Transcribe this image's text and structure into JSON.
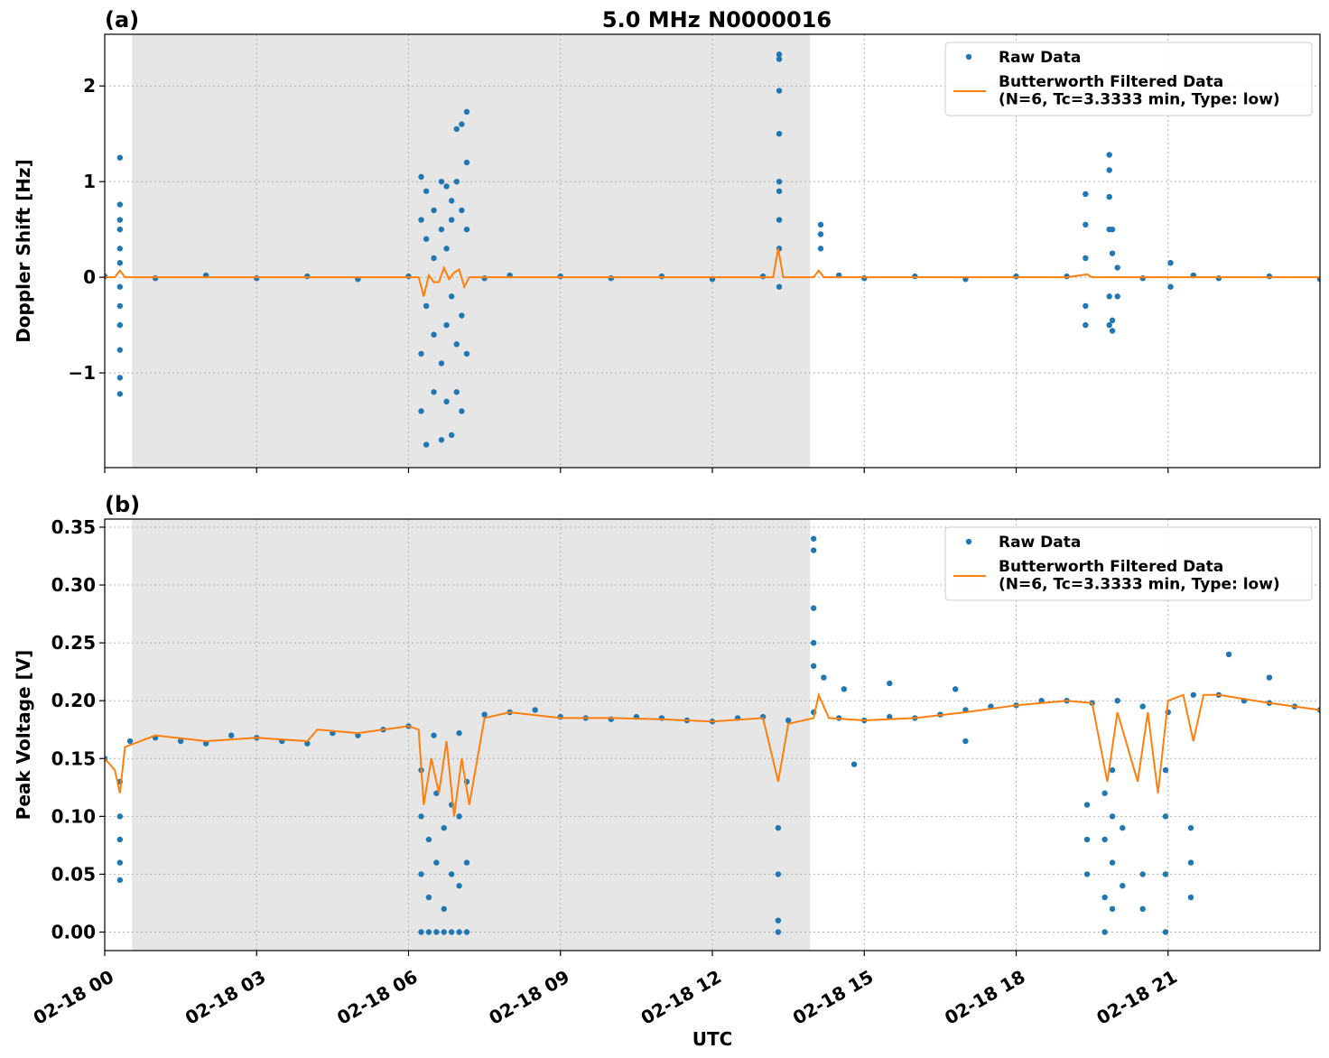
{
  "chart_data": [
    {
      "type": "scatter_line",
      "panel_label": "(a)",
      "title": "5.0 MHz N0000016",
      "ylabel": "Doppler Shift [Hz]",
      "xlim": [
        0,
        24
      ],
      "xticks": [
        0,
        3,
        6,
        9,
        12,
        15,
        18,
        21
      ],
      "ylim": [
        -1.99,
        2.54
      ],
      "yticks": [
        {
          "value": -1,
          "label": "−1"
        },
        0,
        1,
        2
      ],
      "grid": true,
      "legend": "upper right",
      "shaded_region": [
        0.54,
        13.93
      ],
      "shaded_color": "#e6e6e6",
      "series": [
        {
          "name": "Raw Data",
          "kind": "points",
          "color": "#1f77b4",
          "x": [
            0,
            1,
            2,
            3,
            4,
            5,
            6,
            7.5,
            8,
            9,
            10,
            11,
            12,
            13,
            14.5,
            15,
            16,
            17,
            18,
            19,
            20.5,
            21.5,
            22,
            23,
            24,
            0.3,
            0.3,
            0.3,
            0.3,
            0.3,
            0.3,
            0.3,
            0.3,
            0.3,
            0.3,
            0.3,
            0.3,
            6.25,
            6.25,
            6.25,
            6.25,
            6.35,
            6.35,
            6.35,
            6.35,
            6.5,
            6.5,
            6.5,
            6.5,
            6.65,
            6.65,
            6.65,
            6.65,
            6.75,
            6.75,
            6.75,
            6.75,
            6.85,
            6.85,
            6.85,
            6.85,
            6.95,
            6.95,
            6.95,
            6.95,
            7.05,
            7.05,
            7.05,
            7.05,
            7.15,
            7.15,
            7.15,
            7.15,
            13.32,
            13.32,
            13.32,
            13.32,
            13.32,
            13.32,
            13.32,
            13.32,
            13.32,
            14.14,
            14.14,
            14.14,
            19.37,
            19.37,
            19.37,
            19.37,
            19.37,
            19.84,
            19.84,
            19.84,
            19.84,
            19.84,
            19.84,
            19.9,
            19.9,
            19.9,
            19.9,
            20.0,
            20.0,
            21.05,
            21.05
          ],
          "values": [
            0.01,
            -0.01,
            0.02,
            -0.01,
            0.01,
            -0.02,
            0.01,
            -0.01,
            0.02,
            0.01,
            -0.01,
            0.01,
            -0.02,
            0.01,
            0.02,
            -0.01,
            0.01,
            -0.02,
            0.01,
            0.01,
            -0.01,
            0.02,
            -0.01,
            0.01,
            -0.02,
            1.25,
            0.76,
            0.6,
            0.5,
            0.3,
            0.15,
            -0.1,
            -0.3,
            -0.5,
            -0.76,
            -1.05,
            -1.22,
            1.05,
            -0.8,
            0.6,
            -1.4,
            0.9,
            -1.75,
            -0.3,
            0.4,
            0.7,
            -1.2,
            0.2,
            -0.6,
            1.0,
            -1.7,
            0.5,
            -0.9,
            0.95,
            -1.3,
            -0.5,
            0.3,
            0.8,
            -1.65,
            0.6,
            -0.2,
            1.0,
            -1.2,
            1.55,
            -0.7,
            1.6,
            -1.4,
            0.7,
            -0.4,
            1.73,
            1.2,
            -0.8,
            0.5,
            2.33,
            2.28,
            1.95,
            1.5,
            1.0,
            0.9,
            0.6,
            0.3,
            -0.1,
            0.55,
            0.45,
            0.3,
            0.87,
            0.55,
            0.2,
            -0.3,
            -0.5,
            1.28,
            1.12,
            0.84,
            0.5,
            -0.2,
            -0.5,
            0.5,
            0.25,
            -0.45,
            -0.56,
            0.1,
            -0.2,
            0.15,
            -0.1
          ]
        },
        {
          "name": "Butterworth Filtered Data\n(N=6, Tc=3.3333 min, Type: low)",
          "kind": "line",
          "color": "#ff7f0e",
          "x": [
            0,
            0.2,
            0.3,
            0.4,
            1,
            2,
            3,
            4,
            5,
            6,
            6.2,
            6.3,
            6.4,
            6.5,
            6.6,
            6.7,
            6.8,
            6.9,
            7.0,
            7.1,
            7.2,
            8,
            9,
            10,
            11,
            12,
            13,
            13.2,
            13.3,
            13.4,
            14,
            14.1,
            14.2,
            15,
            16,
            17,
            18,
            19,
            19.4,
            19.5,
            20,
            21,
            22,
            23,
            24
          ],
          "values": [
            0,
            0,
            0.07,
            0,
            0,
            0,
            0,
            0,
            0,
            0,
            0,
            -0.2,
            0.02,
            -0.05,
            -0.05,
            0.1,
            -0.02,
            0.05,
            0.08,
            -0.1,
            0,
            0,
            0,
            0,
            0,
            0,
            0,
            0,
            0.3,
            0,
            0,
            0.07,
            0,
            0,
            0,
            0,
            0,
            0,
            0.03,
            0,
            0,
            0,
            0,
            0,
            0
          ]
        }
      ]
    },
    {
      "type": "scatter_line",
      "panel_label": "(b)",
      "ylabel": "Peak Voltage [V]",
      "xlabel": "UTC",
      "xlim": [
        0,
        24
      ],
      "xticks": [
        {
          "value": 0,
          "label": "02-18 00"
        },
        {
          "value": 3,
          "label": "02-18 03"
        },
        {
          "value": 6,
          "label": "02-18 06"
        },
        {
          "value": 9,
          "label": "02-18 09"
        },
        {
          "value": 12,
          "label": "02-18 12"
        },
        {
          "value": 15,
          "label": "02-18 15"
        },
        {
          "value": 18,
          "label": "02-18 18"
        },
        {
          "value": 21,
          "label": "02-18 21"
        }
      ],
      "ylim": [
        -0.016,
        0.357
      ],
      "yticks": [
        {
          "value": 0,
          "label": "0.00"
        },
        {
          "value": 0.05,
          "label": "0.05"
        },
        {
          "value": 0.1,
          "label": "0.10"
        },
        {
          "value": 0.15,
          "label": "0.15"
        },
        {
          "value": 0.2,
          "label": "0.20"
        },
        {
          "value": 0.25,
          "label": "0.25"
        },
        {
          "value": 0.3,
          "label": "0.30"
        },
        {
          "value": 0.35,
          "label": "0.35"
        }
      ],
      "grid": true,
      "legend": "upper right",
      "shaded_region": [
        0.54,
        13.93
      ],
      "shaded_color": "#e6e6e6",
      "series": [
        {
          "name": "Raw Data",
          "kind": "points",
          "color": "#1f77b4",
          "x": [
            0,
            0.5,
            1,
            1.5,
            2,
            2.5,
            3,
            3.5,
            4,
            4.5,
            5,
            5.5,
            6,
            6.5,
            7,
            7.5,
            8,
            8.5,
            9,
            9.5,
            10,
            10.5,
            11,
            11.5,
            12,
            12.5,
            13,
            13.5,
            14,
            14.5,
            15,
            15.5,
            16,
            16.5,
            17,
            17.5,
            18,
            18.5,
            19,
            19.5,
            20,
            20.5,
            21,
            21.5,
            22,
            22.5,
            23,
            23.5,
            24,
            14.2,
            14.6,
            15.5,
            16.8,
            14.8,
            17,
            22.2,
            23,
            0.3,
            0.3,
            0.3,
            0.3,
            0.3,
            6.25,
            6.25,
            6.25,
            6.25,
            6.4,
            6.4,
            6.4,
            6.55,
            6.55,
            6.55,
            6.7,
            6.7,
            6.7,
            6.85,
            6.85,
            6.85,
            7.0,
            7.0,
            7.0,
            7.15,
            7.15,
            7.15,
            13.3,
            13.3,
            13.3,
            13.3,
            14.0,
            14.0,
            14.0,
            14.0,
            14.0,
            19.4,
            19.4,
            19.4,
            19.75,
            19.75,
            19.75,
            19.75,
            19.9,
            19.9,
            19.9,
            19.9,
            20.1,
            20.1,
            20.5,
            20.5,
            20.95,
            20.95,
            20.95,
            20.95,
            21.45,
            21.45,
            21.45
          ],
          "values": [
            0.15,
            0.165,
            0.168,
            0.165,
            0.163,
            0.17,
            0.168,
            0.165,
            0.163,
            0.172,
            0.17,
            0.175,
            0.178,
            0.17,
            0.172,
            0.188,
            0.19,
            0.192,
            0.186,
            0.185,
            0.184,
            0.186,
            0.185,
            0.183,
            0.182,
            0.185,
            0.186,
            0.183,
            0.19,
            0.185,
            0.183,
            0.186,
            0.185,
            0.188,
            0.192,
            0.195,
            0.196,
            0.2,
            0.2,
            0.198,
            0.2,
            0.195,
            0.19,
            0.205,
            0.205,
            0.2,
            0.198,
            0.195,
            0.192,
            0.22,
            0.21,
            0.215,
            0.21,
            0.145,
            0.165,
            0.24,
            0.22,
            0.13,
            0.1,
            0.08,
            0.06,
            0.045,
            0,
            0.05,
            0.1,
            0.14,
            0,
            0.03,
            0.08,
            0,
            0.06,
            0.12,
            0,
            0.02,
            0.09,
            0,
            0.05,
            0.11,
            0,
            0.04,
            0.1,
            0,
            0.06,
            0.13,
            0.09,
            0.05,
            0.01,
            0,
            0.34,
            0.33,
            0.28,
            0.25,
            0.23,
            0.11,
            0.08,
            0.05,
            0,
            0.03,
            0.08,
            0.12,
            0.02,
            0.06,
            0.1,
            0.14,
            0.04,
            0.09,
            0.05,
            0.02,
            0,
            0.05,
            0.1,
            0.14,
            0.09,
            0.06,
            0.03
          ]
        },
        {
          "name": "Butterworth Filtered Data\n(N=6, Tc=3.3333 min, Type: low)",
          "kind": "line",
          "color": "#ff7f0e",
          "x": [
            0,
            0.2,
            0.3,
            0.4,
            1,
            2,
            3,
            4,
            4.2,
            5,
            6,
            6.2,
            6.3,
            6.45,
            6.6,
            6.75,
            6.9,
            7.05,
            7.2,
            7.5,
            8,
            9,
            10,
            11,
            12,
            13,
            13.3,
            13.5,
            14,
            14.1,
            14.3,
            15,
            16,
            17,
            18,
            19,
            19.5,
            19.8,
            20,
            20.4,
            20.6,
            20.8,
            21,
            21.3,
            21.5,
            21.7,
            22,
            23,
            24
          ],
          "values": [
            0.15,
            0.14,
            0.12,
            0.16,
            0.17,
            0.165,
            0.168,
            0.165,
            0.175,
            0.172,
            0.178,
            0.175,
            0.11,
            0.15,
            0.12,
            0.165,
            0.1,
            0.15,
            0.11,
            0.185,
            0.19,
            0.185,
            0.185,
            0.184,
            0.182,
            0.185,
            0.13,
            0.18,
            0.185,
            0.205,
            0.185,
            0.183,
            0.185,
            0.19,
            0.196,
            0.2,
            0.198,
            0.13,
            0.19,
            0.13,
            0.19,
            0.12,
            0.2,
            0.205,
            0.165,
            0.205,
            0.205,
            0.198,
            0.192
          ]
        }
      ]
    }
  ]
}
